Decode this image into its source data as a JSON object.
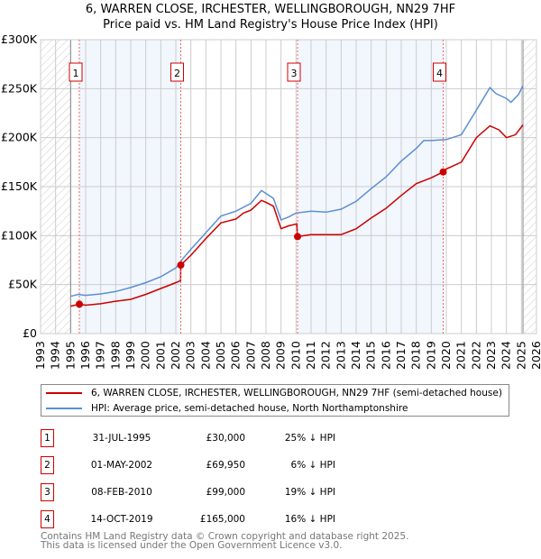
{
  "title": {
    "line1": "6, WARREN CLOSE, IRCHESTER, WELLINGBOROUGH, NN29 7HF",
    "line2": "Price paid vs. HM Land Registry's House Price Index (HPI)"
  },
  "chart_data": {
    "type": "line",
    "xlim": [
      1993,
      2026
    ],
    "ylim": [
      0,
      300000
    ],
    "x_ticks": [
      "1993",
      "1994",
      "1995",
      "1996",
      "1997",
      "1998",
      "1999",
      "2000",
      "2001",
      "2002",
      "2003",
      "2004",
      "2005",
      "2006",
      "2007",
      "2008",
      "2009",
      "2010",
      "2011",
      "2012",
      "2013",
      "2014",
      "2015",
      "2016",
      "2017",
      "2018",
      "2019",
      "2020",
      "2021",
      "2022",
      "2023",
      "2024",
      "2025",
      "2026"
    ],
    "y_ticks": [
      {
        "v": 0,
        "label": "£0"
      },
      {
        "v": 50000,
        "label": "£50K"
      },
      {
        "v": 100000,
        "label": "£100K"
      },
      {
        "v": 150000,
        "label": "£150K"
      },
      {
        "v": 200000,
        "label": "£200K"
      },
      {
        "v": 250000,
        "label": "£250K"
      },
      {
        "v": 300000,
        "label": "£300K"
      }
    ],
    "data_range": [
      1995,
      2025.1
    ],
    "shaded_periods": [
      [
        1995.58,
        2002.33
      ],
      [
        2010.1,
        2019.79
      ]
    ],
    "series": [
      {
        "name": "6, WARREN CLOSE, IRCHESTER, WELLINGBOROUGH, NN29 7HF (semi-detached house)",
        "color": "#cc0000",
        "points": [
          [
            1995,
            28000
          ],
          [
            1995.58,
            30000
          ],
          [
            1996,
            29000
          ],
          [
            1997,
            30500
          ],
          [
            1998,
            33000
          ],
          [
            1999,
            35000
          ],
          [
            2000,
            40000
          ],
          [
            2001,
            46000
          ],
          [
            2002,
            52000
          ],
          [
            2002.32,
            54000
          ],
          [
            2002.33,
            69950
          ],
          [
            2003,
            80000
          ],
          [
            2004,
            97000
          ],
          [
            2005,
            113000
          ],
          [
            2006,
            117000
          ],
          [
            2006.5,
            123000
          ],
          [
            2007,
            126000
          ],
          [
            2007.7,
            136000
          ],
          [
            2008,
            134000
          ],
          [
            2008.5,
            130000
          ],
          [
            2009,
            107000
          ],
          [
            2009.5,
            110000
          ],
          [
            2010.05,
            112000
          ],
          [
            2010.1,
            99000
          ],
          [
            2011,
            101000
          ],
          [
            2012,
            101000
          ],
          [
            2013,
            101000
          ],
          [
            2014,
            107000
          ],
          [
            2015,
            118000
          ],
          [
            2016,
            128000
          ],
          [
            2017,
            141000
          ],
          [
            2018,
            153000
          ],
          [
            2019,
            159000
          ],
          [
            2019.79,
            165000
          ],
          [
            2020,
            168000
          ],
          [
            2021,
            175000
          ],
          [
            2022,
            200000
          ],
          [
            2022.9,
            212000
          ],
          [
            2023.5,
            208000
          ],
          [
            2024,
            200000
          ],
          [
            2024.6,
            203000
          ],
          [
            2025.1,
            213000
          ]
        ]
      },
      {
        "name": "HPI: Average price, semi-detached house, North Northamptonshire",
        "color": "#5b8fd4",
        "points": [
          [
            1995,
            38000
          ],
          [
            1995.5,
            40000
          ],
          [
            1996,
            39000
          ],
          [
            1997,
            40500
          ],
          [
            1998,
            43000
          ],
          [
            1999,
            47000
          ],
          [
            2000,
            52000
          ],
          [
            2001,
            58000
          ],
          [
            2002,
            67000
          ],
          [
            2002.5,
            77000
          ],
          [
            2003,
            86000
          ],
          [
            2004,
            103000
          ],
          [
            2005,
            120000
          ],
          [
            2006,
            125000
          ],
          [
            2007,
            133000
          ],
          [
            2007.7,
            146000
          ],
          [
            2008,
            143000
          ],
          [
            2008.5,
            138000
          ],
          [
            2009,
            116000
          ],
          [
            2009.5,
            119000
          ],
          [
            2010,
            123000
          ],
          [
            2011,
            125000
          ],
          [
            2012,
            124000
          ],
          [
            2013,
            127000
          ],
          [
            2014,
            135000
          ],
          [
            2015,
            148000
          ],
          [
            2016,
            160000
          ],
          [
            2017,
            176000
          ],
          [
            2018,
            189000
          ],
          [
            2018.5,
            197000
          ],
          [
            2019,
            197000
          ],
          [
            2020,
            198000
          ],
          [
            2021,
            203000
          ],
          [
            2022,
            228000
          ],
          [
            2022.9,
            251000
          ],
          [
            2023.3,
            245000
          ],
          [
            2024,
            240000
          ],
          [
            2024.3,
            236000
          ],
          [
            2024.8,
            244000
          ],
          [
            2025.1,
            253000
          ]
        ]
      }
    ],
    "sales": [
      {
        "n": "1",
        "x": 1995.58,
        "price": 30000
      },
      {
        "n": "2",
        "x": 2002.33,
        "price": 69950
      },
      {
        "n": "3",
        "x": 2010.1,
        "price": 99000
      },
      {
        "n": "4",
        "x": 2019.79,
        "price": 165000
      }
    ]
  },
  "legend": {
    "red": "6, WARREN CLOSE, IRCHESTER, WELLINGBOROUGH, NN29 7HF (semi-detached house)",
    "blue": "HPI: Average price, semi-detached house, North Northamptonshire"
  },
  "table": [
    {
      "n": "1",
      "date": "31-JUL-1995",
      "price": "£30,000",
      "hpi": "25% ↓ HPI"
    },
    {
      "n": "2",
      "date": "01-MAY-2002",
      "price": "£69,950",
      "hpi": "6% ↓ HPI"
    },
    {
      "n": "3",
      "date": "08-FEB-2010",
      "price": "£99,000",
      "hpi": "19% ↓ HPI"
    },
    {
      "n": "4",
      "date": "14-OCT-2019",
      "price": "£165,000",
      "hpi": "16% ↓ HPI"
    }
  ],
  "footer": {
    "line1": "Contains HM Land Registry data © Crown copyright and database right 2025.",
    "line2": "This data is licensed under the Open Government Licence v3.0."
  }
}
